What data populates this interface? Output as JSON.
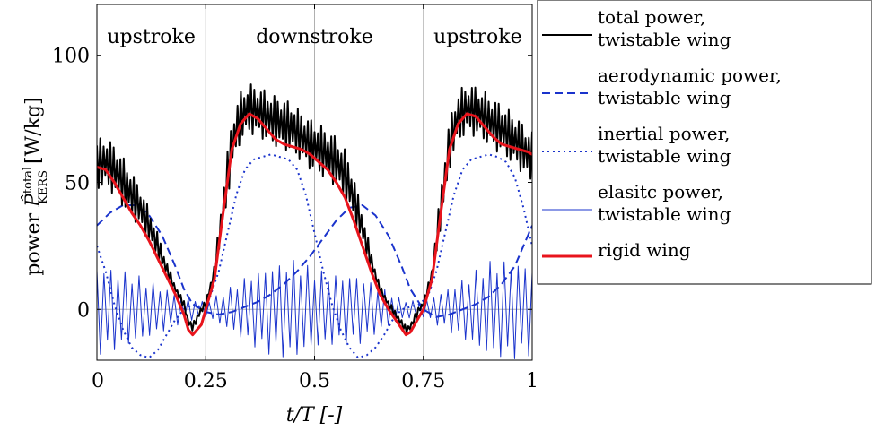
{
  "chart_data": {
    "type": "line",
    "xlabel": "t/T [-]",
    "ylabel": "power P̂ KERS total [W/kg]",
    "ylabel_parts": {
      "main": "power ",
      "symbol": "P̂",
      "sup": "total",
      "sub": "KERS",
      "unit": " [W/kg]"
    },
    "xlim": [
      0,
      1
    ],
    "ylim": [
      -20,
      120
    ],
    "x_ticks": [
      0,
      0.25,
      0.5,
      0.75,
      1
    ],
    "x_tick_labels": [
      "0",
      "0.25",
      "0.5",
      "0.75",
      "1"
    ],
    "y_ticks": [
      0,
      50,
      100
    ],
    "y_tick_labels": [
      "0",
      "50",
      "100"
    ],
    "grid": "vertical lines at 0.25, 0.5, 0.75 and horizontal line at 0",
    "phase_labels": [
      {
        "text": "upstroke",
        "x": 0.125
      },
      {
        "text": "downstroke",
        "x": 0.5
      },
      {
        "text": "upstroke",
        "x": 0.875
      }
    ],
    "legend_position": "outside-right",
    "series": [
      {
        "key": "total",
        "name_lines": [
          "total power,",
          "twistable wing"
        ],
        "color": "#000000",
        "style": "solid",
        "x": [
          0.0,
          0.02,
          0.04,
          0.06,
          0.08,
          0.1,
          0.12,
          0.14,
          0.16,
          0.18,
          0.2,
          0.21,
          0.22,
          0.24,
          0.25,
          0.27,
          0.29,
          0.31,
          0.33,
          0.35,
          0.37,
          0.39,
          0.41,
          0.43,
          0.45,
          0.47,
          0.49,
          0.51,
          0.53,
          0.55,
          0.57,
          0.59,
          0.61,
          0.63,
          0.65,
          0.67,
          0.69,
          0.71,
          0.72,
          0.74,
          0.75,
          0.77,
          0.79,
          0.81,
          0.83,
          0.85,
          0.87,
          0.89,
          0.91,
          0.93,
          0.95,
          0.97,
          0.99,
          1.0
        ],
        "y": [
          57,
          58,
          55,
          50,
          45,
          40,
          33,
          25,
          16,
          8,
          2,
          -5,
          -7,
          0,
          2,
          15,
          40,
          65,
          76,
          79,
          78,
          76,
          74,
          73,
          71,
          68,
          65,
          63,
          61,
          58,
          53,
          44,
          32,
          19,
          8,
          2,
          -3,
          -8,
          -7,
          0,
          2,
          14,
          40,
          65,
          76,
          79,
          78,
          76,
          73,
          71,
          68,
          65,
          61,
          60
        ],
        "oscillation_amplitude": 10
      },
      {
        "key": "aerodynamic",
        "name_lines": [
          "aerodynamic power,",
          "twistable wing"
        ],
        "color": "#1a33cc",
        "style": "dashed",
        "x": [
          0.0,
          0.03,
          0.06,
          0.09,
          0.12,
          0.15,
          0.18,
          0.2,
          0.22,
          0.25,
          0.28,
          0.31,
          0.34,
          0.37,
          0.4,
          0.43,
          0.46,
          0.49,
          0.52,
          0.55,
          0.58,
          0.61,
          0.64,
          0.67,
          0.7,
          0.72,
          0.75,
          0.78,
          0.81,
          0.84,
          0.87,
          0.9,
          0.93,
          0.96,
          1.0
        ],
        "y": [
          33,
          38,
          41,
          41,
          37,
          29,
          17,
          8,
          2,
          -1,
          -2,
          -1,
          1,
          3,
          6,
          10,
          15,
          21,
          28,
          35,
          40,
          41,
          37,
          29,
          17,
          8,
          0,
          -3,
          -2,
          0,
          2,
          5,
          10,
          17,
          33
        ]
      },
      {
        "key": "inertial",
        "name_lines": [
          "inertial power,",
          "twistable wing"
        ],
        "color": "#1a33cc",
        "style": "dotted",
        "x": [
          0.0,
          0.02,
          0.04,
          0.06,
          0.08,
          0.1,
          0.12,
          0.14,
          0.16,
          0.18,
          0.2,
          0.22,
          0.24,
          0.26,
          0.28,
          0.3,
          0.32,
          0.34,
          0.36,
          0.38,
          0.4,
          0.42,
          0.44,
          0.46,
          0.48,
          0.5,
          0.52,
          0.54,
          0.56,
          0.58,
          0.6,
          0.62,
          0.64,
          0.66,
          0.68,
          0.7,
          0.72,
          0.74,
          0.76,
          0.78,
          0.8,
          0.82,
          0.84,
          0.86,
          0.88,
          0.9,
          0.92,
          0.94,
          0.96,
          0.98,
          1.0
        ],
        "y": [
          25,
          15,
          2,
          -8,
          -15,
          -18,
          -19,
          -16,
          -10,
          -4,
          0,
          2,
          1,
          5,
          15,
          30,
          45,
          55,
          59,
          60,
          61,
          60,
          59,
          55,
          45,
          30,
          15,
          2,
          -8,
          -15,
          -19,
          -18,
          -15,
          -10,
          -4,
          0,
          1,
          2,
          5,
          15,
          30,
          45,
          55,
          59,
          60,
          61,
          60,
          58,
          52,
          40,
          25
        ]
      },
      {
        "key": "elastic",
        "name_lines": [
          "elasitc power,",
          "twistable wing"
        ],
        "color": "#1a33cc",
        "style": "thin-solid",
        "oscillation_periods": 62,
        "envelope_x": [
          0.0,
          0.05,
          0.1,
          0.15,
          0.2,
          0.25,
          0.3,
          0.35,
          0.4,
          0.45,
          0.5,
          0.55,
          0.6,
          0.65,
          0.7,
          0.75,
          0.8,
          0.85,
          0.9,
          0.95,
          1.0
        ],
        "envelope_amplitude": [
          18,
          16,
          13,
          9,
          5,
          3,
          8,
          14,
          18,
          20,
          16,
          14,
          14,
          9,
          4,
          3,
          8,
          13,
          19,
          20,
          18
        ]
      },
      {
        "key": "rigid",
        "name_lines": [
          "rigid wing"
        ],
        "color": "#e8141c",
        "style": "thick-solid",
        "x": [
          0.0,
          0.02,
          0.04,
          0.06,
          0.08,
          0.1,
          0.12,
          0.14,
          0.16,
          0.18,
          0.2,
          0.21,
          0.22,
          0.24,
          0.25,
          0.27,
          0.29,
          0.31,
          0.33,
          0.35,
          0.37,
          0.39,
          0.41,
          0.43,
          0.45,
          0.47,
          0.49,
          0.51,
          0.53,
          0.55,
          0.57,
          0.59,
          0.61,
          0.63,
          0.65,
          0.67,
          0.69,
          0.71,
          0.72,
          0.74,
          0.75,
          0.77,
          0.79,
          0.81,
          0.83,
          0.85,
          0.87,
          0.89,
          0.91,
          0.93,
          0.95,
          0.97,
          0.99,
          1.0
        ],
        "y": [
          56,
          55,
          50,
          44,
          38,
          33,
          27,
          20,
          13,
          6,
          -2,
          -8,
          -10,
          -6,
          0,
          12,
          38,
          63,
          73,
          77,
          75,
          71,
          67,
          65,
          64,
          63,
          61,
          58,
          55,
          50,
          44,
          35,
          25,
          15,
          6,
          0,
          -5,
          -10,
          -9,
          -3,
          0,
          12,
          38,
          63,
          73,
          77,
          76,
          72,
          68,
          65,
          64,
          63,
          62,
          61
        ]
      }
    ]
  }
}
